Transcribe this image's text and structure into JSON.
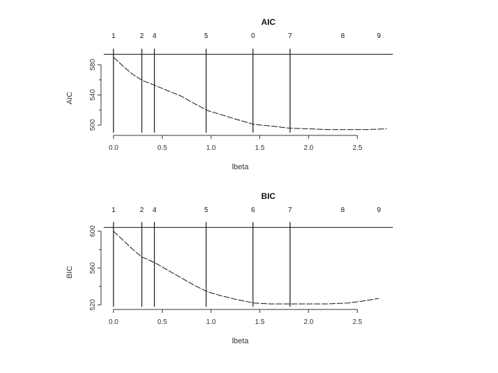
{
  "chart_data": [
    {
      "type": "line",
      "title": "AIC",
      "xlabel": "lbeta",
      "ylabel": "AIC",
      "xlim": [
        -0.1,
        2.85
      ],
      "ylim": [
        490,
        600
      ],
      "x_ticks": [
        0.0,
        0.5,
        1.0,
        1.5,
        2.0,
        2.5
      ],
      "x_tick_labels": [
        "0.0",
        "0.5",
        "1.0",
        "1.5",
        "2.0",
        "2.5"
      ],
      "y_ticks": [
        500,
        540,
        580
      ],
      "y_tick_labels": [
        "500",
        "540",
        "580"
      ],
      "frame_top_value": 594,
      "series": [
        {
          "x": [
            0.0,
            0.1,
            0.2,
            0.3,
            0.42,
            0.55,
            0.7,
            0.85,
            0.97,
            1.1,
            1.25,
            1.44,
            1.6,
            1.8,
            2.0,
            2.2,
            2.4,
            2.6,
            2.8
          ],
          "y": [
            590,
            578,
            567,
            559,
            553,
            546,
            538,
            527,
            519,
            514,
            508,
            501,
            499,
            496,
            495,
            494,
            494,
            494,
            495
          ]
        }
      ],
      "vertical_lines": [
        {
          "x": 0.0,
          "label": "1"
        },
        {
          "x": 0.29,
          "label": "2"
        },
        {
          "x": 0.42,
          "label": "4"
        },
        {
          "x": 0.95,
          "label": "5"
        },
        {
          "x": 1.43,
          "label": "0"
        },
        {
          "x": 1.81,
          "label": "7"
        }
      ],
      "top_labels_only": [
        {
          "x": 2.35,
          "label": "8"
        },
        {
          "x": 2.72,
          "label": "9"
        }
      ]
    },
    {
      "type": "line",
      "title": "BIC",
      "xlabel": "lbeta",
      "ylabel": "BIC",
      "xlim": [
        -0.1,
        2.85
      ],
      "ylim": [
        518,
        608
      ],
      "x_ticks": [
        0.0,
        0.5,
        1.0,
        1.5,
        2.0,
        2.5
      ],
      "x_tick_labels": [
        "0.0",
        "0.5",
        "1.0",
        "1.5",
        "2.0",
        "2.5"
      ],
      "y_ticks": [
        520,
        560,
        600
      ],
      "y_tick_labels": [
        "520",
        "560",
        "600"
      ],
      "frame_top_value": 604,
      "series": [
        {
          "x": [
            0.0,
            0.1,
            0.2,
            0.29,
            0.42,
            0.55,
            0.7,
            0.85,
            0.97,
            1.1,
            1.25,
            1.44,
            1.6,
            1.8,
            2.0,
            2.2,
            2.4,
            2.55,
            2.72
          ],
          "y": [
            600,
            590,
            580,
            572,
            566,
            558,
            549,
            540,
            534,
            530,
            526,
            522,
            521,
            521,
            521,
            521,
            522,
            524,
            527
          ]
        }
      ],
      "vertical_lines": [
        {
          "x": 0.0,
          "label": "1"
        },
        {
          "x": 0.29,
          "label": "2"
        },
        {
          "x": 0.42,
          "label": "4"
        },
        {
          "x": 0.95,
          "label": "5"
        },
        {
          "x": 1.43,
          "label": "6"
        },
        {
          "x": 1.81,
          "label": "7"
        }
      ],
      "top_labels_only": [
        {
          "x": 2.35,
          "label": "8"
        },
        {
          "x": 2.72,
          "label": "9"
        }
      ]
    }
  ]
}
